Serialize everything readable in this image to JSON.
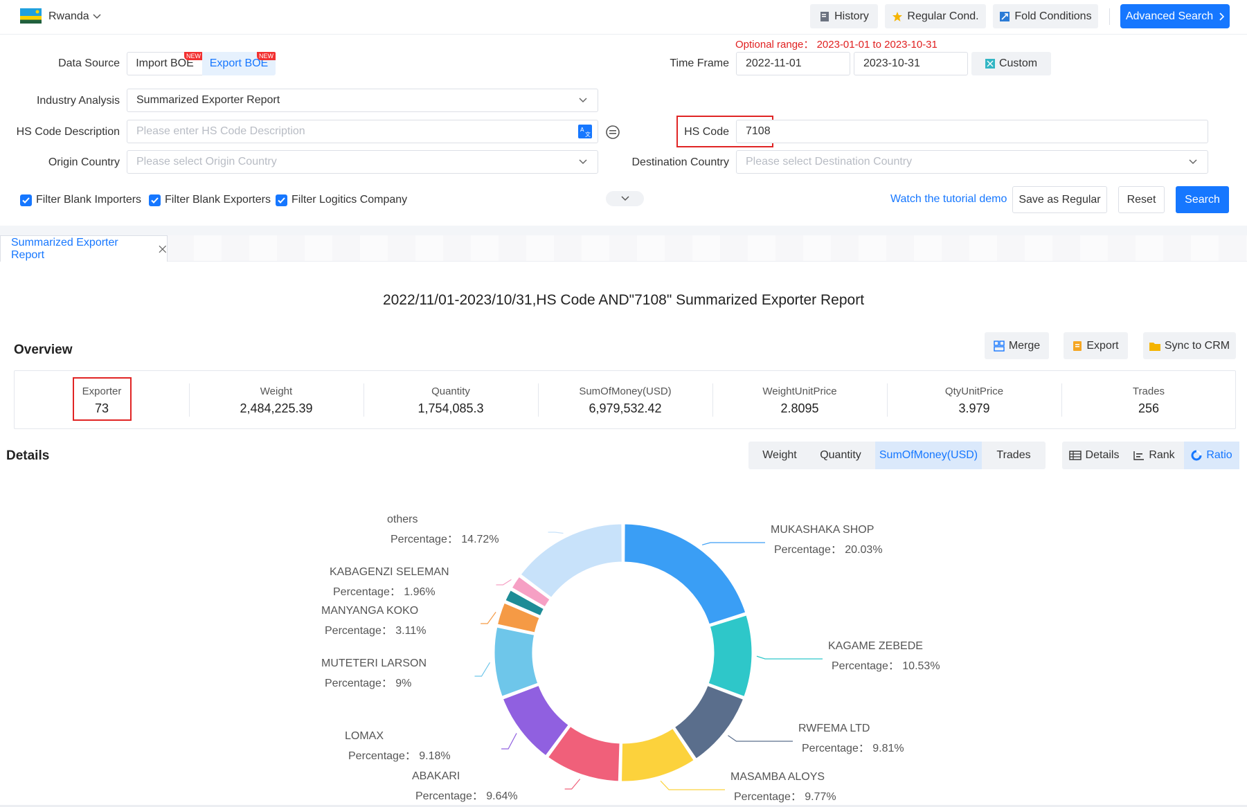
{
  "header": {
    "country": "Rwanda",
    "buttons": {
      "history": "History",
      "regular": "Regular Cond.",
      "fold": "Fold Conditions",
      "advanced": "Advanced Search"
    }
  },
  "form": {
    "data_source_label": "Data Source",
    "import_label": "Import BOE",
    "export_label": "Export BOE",
    "new_badge": "NEW",
    "optional_range": "Optional range： 2023-01-01 to 2023-10-31",
    "time_frame_label": "Time Frame",
    "time_start": "2022-11-01",
    "time_end": "2023-10-31",
    "custom_label": "Custom",
    "industry_label": "Industry Analysis",
    "industry_value": "Summarized Exporter Report",
    "hs_desc_label": "HS Code Description",
    "hs_desc_placeholder": "Please enter HS Code Description",
    "hs_code_label": "HS Code",
    "hs_code_value": "7108",
    "origin_label": "Origin Country",
    "origin_placeholder": "Please select Origin Country",
    "dest_label": "Destination Country",
    "dest_placeholder": "Please select Destination Country",
    "filters": [
      "Filter Blank Importers",
      "Filter Blank Exporters",
      "Filter Logitics Company"
    ],
    "tutorial_link": "Watch the tutorial demo",
    "save_regular": "Save as Regular",
    "reset": "Reset",
    "search": "Search"
  },
  "tab": {
    "label": "Summarized Exporter Report"
  },
  "report": {
    "title": "2022/11/01-2023/10/31,HS Code AND\"7108\" Summarized Exporter Report",
    "overview_heading": "Overview",
    "actions": {
      "merge": "Merge",
      "export": "Export",
      "sync": "Sync to CRM"
    },
    "stats": [
      {
        "label": "Exporter",
        "value": "73"
      },
      {
        "label": "Weight",
        "value": "2,484,225.39"
      },
      {
        "label": "Quantity",
        "value": "1,754,085.3"
      },
      {
        "label": "SumOfMoney(USD)",
        "value": "6,979,532.42"
      },
      {
        "label": "WeightUnitPrice",
        "value": "2.8095"
      },
      {
        "label": "QtyUnitPrice",
        "value": "3.979"
      },
      {
        "label": "Trades",
        "value": "256"
      }
    ],
    "details_heading": "Details",
    "metrics": [
      "Weight",
      "Quantity",
      "SumOfMoney(USD)",
      "Trades"
    ],
    "active_metric": "SumOfMoney(USD)",
    "views": [
      "Details",
      "Rank",
      "Ratio"
    ],
    "active_view": "Ratio"
  },
  "chart_data": {
    "type": "pie",
    "variant": "donut",
    "value_prefix": "Percentage：",
    "slices": [
      {
        "name": "MUKASHAKA SHOP",
        "percent": 20.03,
        "label": "20.03%",
        "color": "#3a9ef5"
      },
      {
        "name": "KAGAME ZEBEDE",
        "percent": 10.53,
        "label": "10.53%",
        "color": "#2ec7c9"
      },
      {
        "name": "RWFEMA LTD",
        "percent": 9.81,
        "label": "9.81%",
        "color": "#5a6e8c"
      },
      {
        "name": "MASAMBA ALOYS",
        "percent": 9.77,
        "label": "9.77%",
        "color": "#fcd23c"
      },
      {
        "name": "ABAKARI",
        "percent": 9.64,
        "label": "9.64%",
        "color": "#f0607a"
      },
      {
        "name": "LOMAX",
        "percent": 9.18,
        "label": "9.18%",
        "color": "#9060e0"
      },
      {
        "name": "MUTETERI LARSON",
        "percent": 9,
        "label": "9%",
        "color": "#6ec6ea"
      },
      {
        "name": "MANYANGA KOKO",
        "percent": 3.11,
        "label": "3.11%",
        "color": "#f59a45"
      },
      {
        "name": "",
        "percent": 1.75,
        "label": "",
        "color": "#1e8c96"
      },
      {
        "name": "KABAGENZI SELEMAN",
        "percent": 1.96,
        "label": "1.96%",
        "color": "#f6a0c4"
      },
      {
        "name": "others",
        "percent": 14.72,
        "label": "14.72%",
        "color": "#c8e2fa"
      }
    ]
  },
  "colors": {
    "accent": "#1677ff",
    "highlight": "#e02424"
  }
}
